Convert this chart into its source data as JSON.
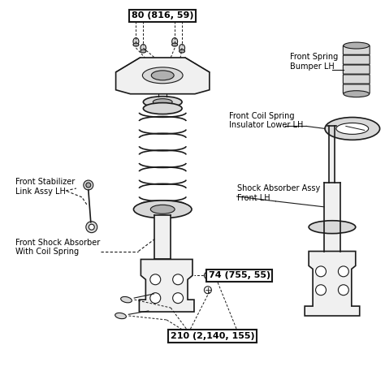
{
  "background_color": "#ffffff",
  "fig_width": 4.74,
  "fig_height": 4.57,
  "dpi": 100,
  "labels": {
    "top_bolt": "80 (816, 59)",
    "front_spring_bumper": "Front Spring\nBumper LH",
    "front_coil_spring_insulator": "Front Coil Spring\nInsulator Lower LH",
    "front_stabilizer": "Front Stabilizer\nLink Assy LH",
    "shock_absorber_assy": "Shock Absorber Assy\nFront LH",
    "front_shock_absorber": "Front Shock Absorber\nWith Coil Spring",
    "mid_bolt": "74 (755, 55)",
    "bottom_bolt": "210 (2,140, 155)"
  },
  "colors": {
    "line": "#1a1a1a",
    "fill_light": "#f0f0f0",
    "fill_medium": "#d8d8d8",
    "fill_dark": "#b0b0b0",
    "white": "#ffffff"
  },
  "font_sizes": {
    "label": 7.0,
    "bolt_label": 8.0
  }
}
